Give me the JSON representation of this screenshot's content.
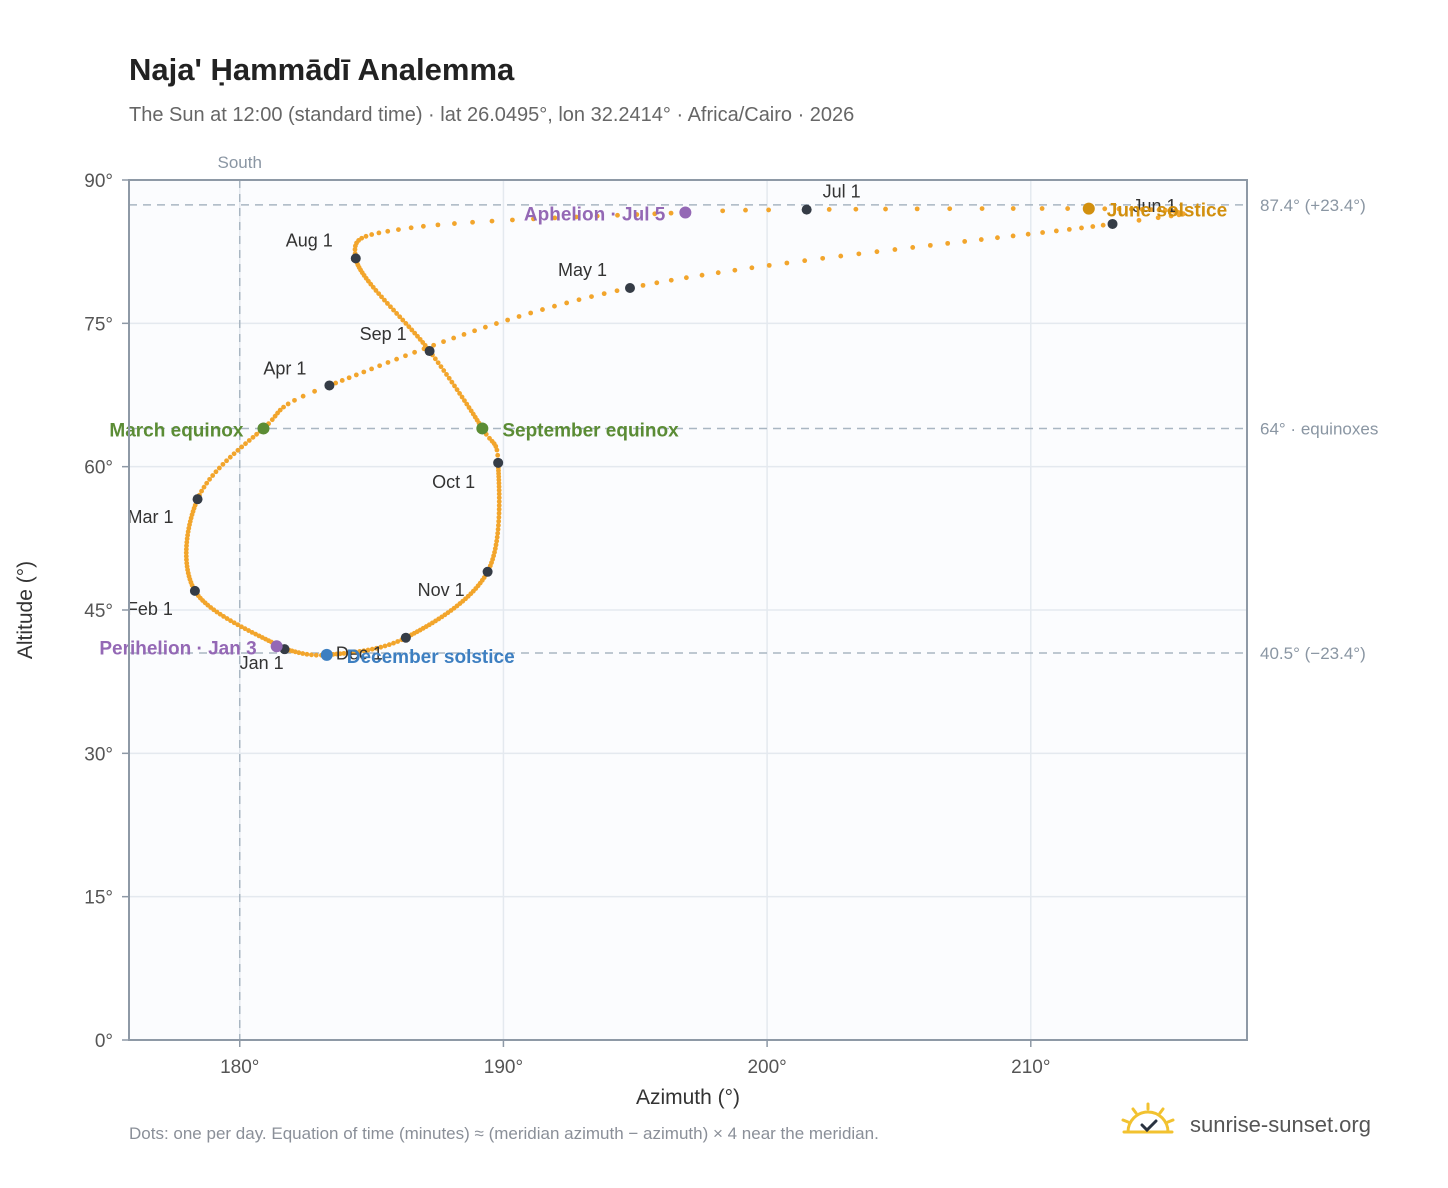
{
  "header": {
    "title": "Naja' Ḥammādī Analemma",
    "subtitle": "The Sun at 12:00 (standard time) · lat 26.0495°, lon 32.2414° · Africa/Cairo · 2026"
  },
  "footnote": "Dots: one per day. Equation of time (minutes) ≈ (meridian azimuth − azimuth) × 4 near the meridian.",
  "brand": {
    "name": "sunrise-sunset.org",
    "icon": "sun-logo-icon",
    "color": "#f2c230"
  },
  "chart_data": {
    "type": "scatter",
    "xlabel": "Azimuth (°)",
    "ylabel": "Altitude (°)",
    "xlim": [
      175.8,
      218.2
    ],
    "ylim": [
      0,
      90
    ],
    "x_ticks": [
      {
        "value": 180,
        "label": "180°"
      },
      {
        "value": 190,
        "label": "190°"
      },
      {
        "value": 200,
        "label": "200°"
      },
      {
        "value": 210,
        "label": "210°"
      }
    ],
    "y_ticks": [
      {
        "value": 0,
        "label": "0°"
      },
      {
        "value": 15,
        "label": "15°"
      },
      {
        "value": 30,
        "label": "30°"
      },
      {
        "value": 45,
        "label": "45°"
      },
      {
        "value": 60,
        "label": "60°"
      },
      {
        "value": 75,
        "label": "75°"
      },
      {
        "value": 90,
        "label": "90°"
      }
    ],
    "grid": true,
    "reference_lines": [
      {
        "axis": "x",
        "value": 180,
        "label": "South"
      },
      {
        "axis": "y",
        "value": 87.4,
        "label": "87.4° (+23.4°)"
      },
      {
        "axis": "y",
        "value": 64,
        "label": "64° · equinoxes"
      },
      {
        "axis": "y",
        "value": 40.5,
        "label": "40.5° (−23.4°)"
      }
    ],
    "colors": {
      "analemma": "#f2a52c",
      "month_marker": "#353c46",
      "equinox": "#5b8c35",
      "june_solstice": "#d2900f",
      "december_solstice": "#3d7fc1",
      "apsis": "#9468b5",
      "reference": "#a9b6c2",
      "plot_bg": "#fbfcfe",
      "frame": "#8e99a6"
    },
    "month_markers": [
      {
        "label": "Jan 1",
        "az": 181.7,
        "alt": 40.9
      },
      {
        "label": "Feb 1",
        "az": 178.3,
        "alt": 47.0
      },
      {
        "label": "Mar 1",
        "az": 178.4,
        "alt": 56.6
      },
      {
        "label": "Apr 1",
        "az": 183.4,
        "alt": 68.5
      },
      {
        "label": "May 1",
        "az": 194.8,
        "alt": 78.7
      },
      {
        "label": "Jun 1",
        "az": 213.1,
        "alt": 85.4
      },
      {
        "label": "Jul 1",
        "az": 201.5,
        "alt": 86.9
      },
      {
        "label": "Aug 1",
        "az": 184.4,
        "alt": 81.8
      },
      {
        "label": "Sep 1",
        "az": 187.2,
        "alt": 72.1
      },
      {
        "label": "Oct 1",
        "az": 189.8,
        "alt": 60.4
      },
      {
        "label": "Nov 1",
        "az": 189.4,
        "alt": 49.0
      },
      {
        "label": "Dec 1",
        "az": 186.3,
        "alt": 42.1
      }
    ],
    "events": [
      {
        "label": "March equinox",
        "az": 180.9,
        "alt": 64.0,
        "color": "#5b8c35"
      },
      {
        "label": "June solstice",
        "az": 212.2,
        "alt": 87.0,
        "color": "#d2900f"
      },
      {
        "label": "September equinox",
        "az": 189.2,
        "alt": 64.0,
        "color": "#5b8c35"
      },
      {
        "label": "December solstice",
        "az": 183.3,
        "alt": 40.3,
        "color": "#3d7fc1"
      },
      {
        "label": "Perihelion · Jan 3",
        "az": 181.4,
        "alt": 41.2,
        "color": "#9468b5"
      },
      {
        "label": "Aphelion · Jul 5",
        "az": 196.9,
        "alt": 86.6,
        "color": "#9468b5"
      }
    ],
    "path_keypoints": [
      [
        181.7,
        40.9
      ],
      [
        178.3,
        47.0
      ],
      [
        178.4,
        56.6
      ],
      [
        180.9,
        64.0
      ],
      [
        183.4,
        68.5
      ],
      [
        194.8,
        78.7
      ],
      [
        213.1,
        85.4
      ],
      [
        215.6,
        86.6
      ],
      [
        212.2,
        87.0
      ],
      [
        201.5,
        86.9
      ],
      [
        196.9,
        86.6
      ],
      [
        186.5,
        85.0
      ],
      [
        184.4,
        81.8
      ],
      [
        187.2,
        72.1
      ],
      [
        189.2,
        64.0
      ],
      [
        189.8,
        60.4
      ],
      [
        189.4,
        49.0
      ],
      [
        186.3,
        42.1
      ],
      [
        183.3,
        40.3
      ],
      [
        181.7,
        40.9
      ]
    ],
    "path_days": [
      0,
      31,
      59,
      79,
      90,
      120,
      151,
      160,
      171,
      181,
      185,
      200,
      212,
      243,
      265,
      273,
      304,
      334,
      354,
      365
    ]
  }
}
